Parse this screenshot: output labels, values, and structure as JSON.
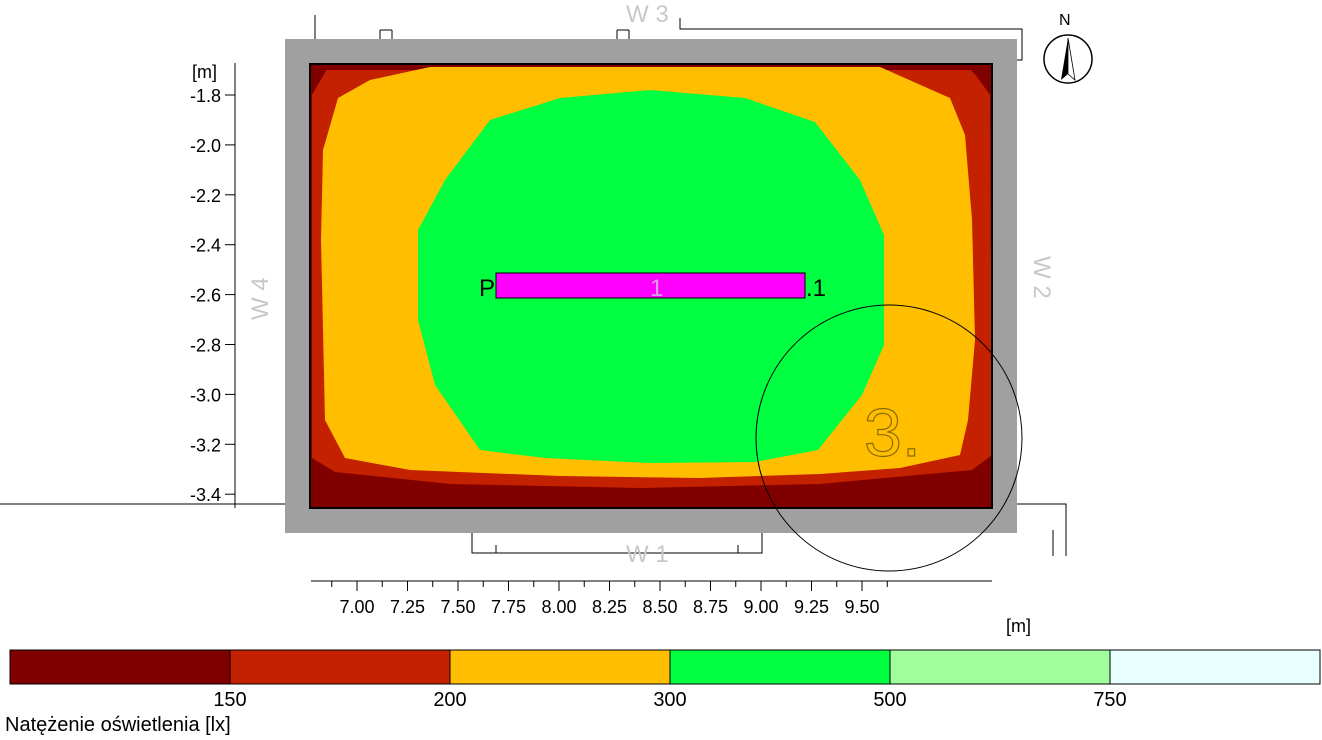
{
  "plan": {
    "y_unit": "[m]",
    "x_unit": "[m]",
    "y_ticks": [
      "-1.8",
      "-2.0",
      "-2.2",
      "-2.4",
      "-2.6",
      "-2.8",
      "-3.0",
      "-3.2",
      "-3.4"
    ],
    "x_ticks": [
      "7.00",
      "7.25",
      "7.50",
      "7.75",
      "8.00",
      "8.25",
      "8.50",
      "8.75",
      "9.00",
      "9.25",
      "9.50"
    ],
    "walls": [
      "W 1",
      "W 2",
      "W 3",
      "W 4"
    ],
    "luminaire_label_left": "P",
    "luminaire_label_mid": "1",
    "luminaire_label_right": ".1",
    "room_number": "3.",
    "north": "N"
  },
  "legend": {
    "title": "Natężenie oświetlenia [lx]",
    "thresholds": [
      "150",
      "200",
      "300",
      "500",
      "750"
    ],
    "colors": [
      "#800000",
      "#c42100",
      "#ffbf00",
      "#00ff40",
      "#a0ff9c",
      "#e8ffff"
    ]
  },
  "colors": {
    "wall": "#a0a0a0",
    "luminaire": "#ff00ff"
  }
}
